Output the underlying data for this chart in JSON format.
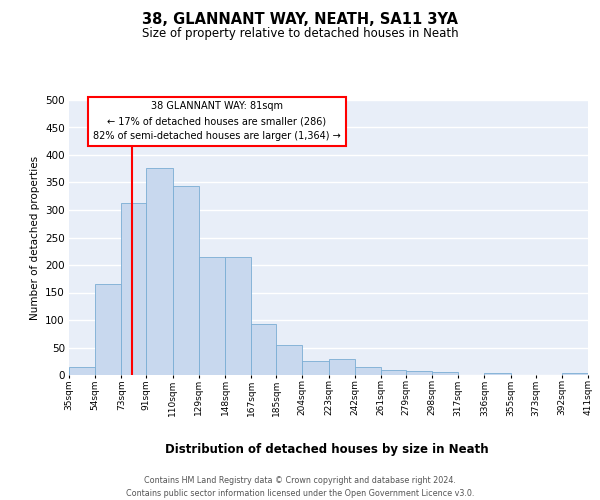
{
  "title": "38, GLANNANT WAY, NEATH, SA11 3YA",
  "subtitle": "Size of property relative to detached houses in Neath",
  "xlabel": "Distribution of detached houses by size in Neath",
  "ylabel": "Number of detached properties",
  "bar_color": "#c8d8ee",
  "bar_edge_color": "#7aadd4",
  "background_color": "#e8eef8",
  "grid_color": "#ffffff",
  "vline_x": 81,
  "vline_color": "red",
  "bins": [
    35,
    54,
    73,
    91,
    110,
    129,
    148,
    167,
    185,
    204,
    223,
    242,
    261,
    279,
    298,
    317,
    336,
    355,
    373,
    392,
    411
  ],
  "heights": [
    15,
    165,
    313,
    376,
    344,
    215,
    215,
    93,
    55,
    25,
    29,
    15,
    10,
    8,
    5,
    0,
    3,
    0,
    0,
    3
  ],
  "ylim": [
    0,
    500
  ],
  "yticks": [
    0,
    50,
    100,
    150,
    200,
    250,
    300,
    350,
    400,
    450,
    500
  ],
  "annotation_title": "38 GLANNANT WAY: 81sqm",
  "annotation_line1": "← 17% of detached houses are smaller (286)",
  "annotation_line2": "82% of semi-detached houses are larger (1,364) →",
  "footer_line1": "Contains HM Land Registry data © Crown copyright and database right 2024.",
  "footer_line2": "Contains public sector information licensed under the Open Government Licence v3.0."
}
